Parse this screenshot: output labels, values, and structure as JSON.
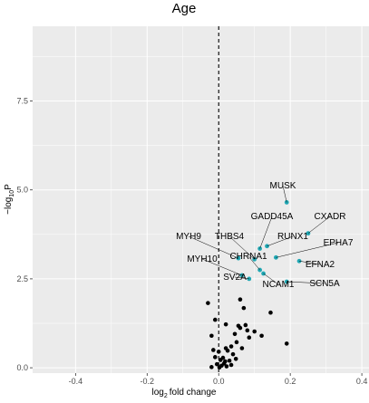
{
  "chart_data": {
    "type": "scatter",
    "title": "Age",
    "xlabel": {
      "base": "log",
      "sub": "2",
      "rest": "fold change"
    },
    "ylabel": {
      "pre": "−log",
      "sub": "10",
      "rest": "P"
    },
    "xlim": [
      -0.52,
      0.42
    ],
    "ylim": [
      -0.15,
      9.6
    ],
    "x_ticks": [
      -0.4,
      -0.2,
      0.0,
      0.2,
      0.4
    ],
    "x_tick_labels": [
      "-0.4",
      "-0.2",
      "0.0",
      "0.2",
      "0.4"
    ],
    "y_ticks": [
      0.0,
      2.5,
      5.0,
      7.5
    ],
    "y_tick_labels": [
      "0.0",
      "2.5",
      "5.0",
      "7.5"
    ],
    "grid": true,
    "reference_line_x": 0,
    "colors": {
      "panel": "#ebebeb",
      "grid": "#ffffff",
      "significant": "#21a8b4",
      "other": "#000000",
      "refline": "#000000"
    },
    "significant_points": [
      {
        "label": "MUSK",
        "x": 0.19,
        "y": 4.65
      },
      {
        "label": "CXADR",
        "x": 0.25,
        "y": 3.78
      },
      {
        "label": "GADD45A",
        "x": 0.115,
        "y": 3.35
      },
      {
        "label": "RUNX1",
        "x": 0.135,
        "y": 3.42
      },
      {
        "label": "THBS4",
        "x": 0.1,
        "y": 3.05
      },
      {
        "label": "MYH9",
        "x": 0.055,
        "y": 3.08
      },
      {
        "label": "EPHA7",
        "x": 0.16,
        "y": 3.1
      },
      {
        "label": "CHRNA1",
        "x": 0.115,
        "y": 2.75
      },
      {
        "label": "EFNA2",
        "x": 0.225,
        "y": 3.0
      },
      {
        "label": "MYH10",
        "x": 0.065,
        "y": 2.6
      },
      {
        "label": "SV2A",
        "x": 0.085,
        "y": 2.5
      },
      {
        "label": "NCAM1",
        "x": 0.125,
        "y": 2.65
      },
      {
        "label": "SCN5A",
        "x": 0.19,
        "y": 2.42
      }
    ],
    "other_points": [
      {
        "x": -0.03,
        "y": 1.82
      },
      {
        "x": 0.06,
        "y": 1.92
      },
      {
        "x": 0.07,
        "y": 1.68
      },
      {
        "x": 0.08,
        "y": 1.05
      },
      {
        "x": 0.1,
        "y": 1.02
      },
      {
        "x": 0.145,
        "y": 1.55
      },
      {
        "x": 0.19,
        "y": 0.68
      },
      {
        "x": -0.01,
        "y": 1.35
      },
      {
        "x": 0.02,
        "y": 1.22
      },
      {
        "x": 0.055,
        "y": 1.18
      },
      {
        "x": 0.06,
        "y": 1.12
      },
      {
        "x": 0.075,
        "y": 1.2
      },
      {
        "x": 0.045,
        "y": 0.95
      },
      {
        "x": 0.085,
        "y": 0.85
      },
      {
        "x": 0.12,
        "y": 0.9
      },
      {
        "x": 0.05,
        "y": 0.72
      },
      {
        "x": 0.035,
        "y": 0.6
      },
      {
        "x": 0.065,
        "y": 0.55
      },
      {
        "x": -0.02,
        "y": 0.9
      },
      {
        "x": -0.015,
        "y": 0.5
      },
      {
        "x": 0.0,
        "y": 0.45
      },
      {
        "x": 0.02,
        "y": 0.55
      },
      {
        "x": 0.025,
        "y": 0.48
      },
      {
        "x": 0.04,
        "y": 0.38
      },
      {
        "x": -0.01,
        "y": 0.3
      },
      {
        "x": 0.005,
        "y": 0.22
      },
      {
        "x": 0.012,
        "y": 0.28
      },
      {
        "x": 0.018,
        "y": 0.18
      },
      {
        "x": 0.03,
        "y": 0.2
      },
      {
        "x": 0.048,
        "y": 0.25
      },
      {
        "x": -0.005,
        "y": 0.1
      },
      {
        "x": 0.008,
        "y": 0.06
      },
      {
        "x": 0.015,
        "y": 0.12
      },
      {
        "x": 0.022,
        "y": 0.04
      },
      {
        "x": 0.035,
        "y": 0.08
      },
      {
        "x": -0.02,
        "y": 0.02
      },
      {
        "x": 0.002,
        "y": 0.01
      }
    ]
  }
}
